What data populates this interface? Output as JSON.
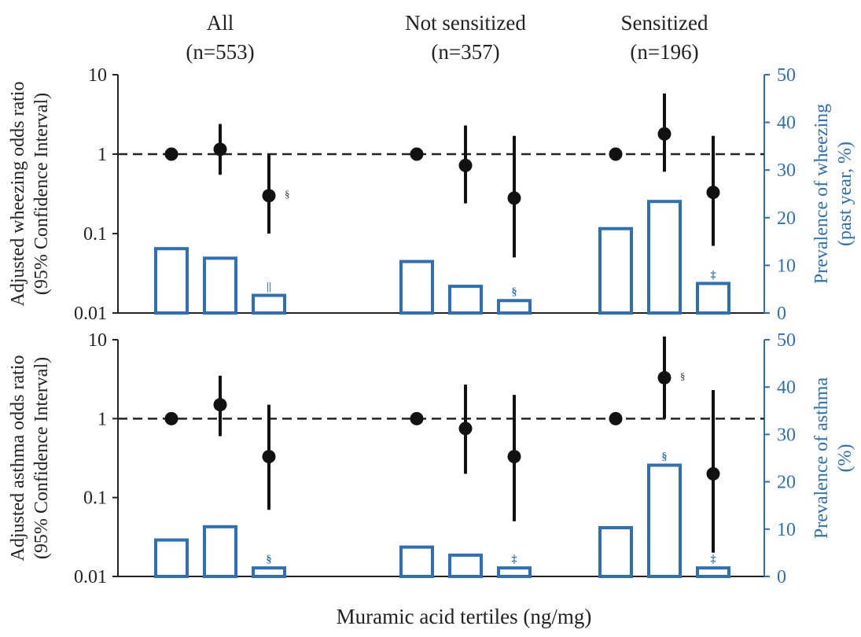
{
  "chart_data": {
    "type": "bar",
    "xlabel": "Muramic acid tertiles (ng/mg)",
    "groups": [
      {
        "name": "All",
        "n": "(n=553)"
      },
      {
        "name": "Not sensitized",
        "n": "(n=357)"
      },
      {
        "name": "Sensitized",
        "n": "(n=196)"
      }
    ],
    "left_ticks": [
      "10",
      "1",
      "0.1",
      "0.01"
    ],
    "right_ticks": [
      "50",
      "40",
      "30",
      "20",
      "10",
      "0"
    ],
    "left_scale": "log",
    "left_range": [
      0.01,
      10
    ],
    "right_range": [
      0,
      50
    ],
    "reference_line": 1,
    "bar_color": "#2e6fb5",
    "right_axis_color": "#2e6fb5",
    "point_color": "#111111",
    "panels": [
      {
        "name": "wheezing",
        "left_label": [
          "Adjusted wheezing odds ratio",
          "(95% Confidence Interval)"
        ],
        "right_label": [
          "Prevalence of wheezing",
          "(past year, %)"
        ],
        "groups": [
          {
            "odds": [
              {
                "or": 1,
                "ci": null,
                "mark": ""
              },
              {
                "or": 1.15,
                "ci": [
                  0.55,
                  2.4
                ],
                "mark": ""
              },
              {
                "or": 0.3,
                "ci": [
                  0.1,
                  1.0
                ],
                "mark": "§"
              }
            ],
            "prevalence": [
              {
                "value": 13.5,
                "mark": ""
              },
              {
                "value": 11.5,
                "mark": ""
              },
              {
                "value": 3.7,
                "mark": "||"
              }
            ]
          },
          {
            "odds": [
              {
                "or": 1,
                "ci": null,
                "mark": ""
              },
              {
                "or": 0.72,
                "ci": [
                  0.24,
                  2.3
                ],
                "mark": ""
              },
              {
                "or": 0.28,
                "ci": [
                  0.05,
                  1.7
                ],
                "mark": ""
              }
            ],
            "prevalence": [
              {
                "value": 10.8,
                "mark": ""
              },
              {
                "value": 5.6,
                "mark": ""
              },
              {
                "value": 2.6,
                "mark": "§"
              }
            ]
          },
          {
            "odds": [
              {
                "or": 1,
                "ci": null,
                "mark": ""
              },
              {
                "or": 1.8,
                "ci": [
                  0.6,
                  5.8
                ],
                "mark": ""
              },
              {
                "or": 0.33,
                "ci": [
                  0.07,
                  1.7
                ],
                "mark": ""
              }
            ],
            "prevalence": [
              {
                "value": 17.7,
                "mark": ""
              },
              {
                "value": 23.4,
                "mark": ""
              },
              {
                "value": 6.2,
                "mark": "‡"
              }
            ]
          }
        ]
      },
      {
        "name": "asthma",
        "left_label": [
          "Adjusted asthma odds ratio",
          "(95% Confidence Interval)"
        ],
        "right_label": [
          "Prevalence of asthma",
          "(%)"
        ],
        "groups": [
          {
            "odds": [
              {
                "or": 1,
                "ci": null,
                "mark": ""
              },
              {
                "or": 1.5,
                "ci": [
                  0.6,
                  3.5
                ],
                "mark": ""
              },
              {
                "or": 0.33,
                "ci": [
                  0.07,
                  1.5
                ],
                "mark": ""
              }
            ],
            "prevalence": [
              {
                "value": 7.7,
                "mark": ""
              },
              {
                "value": 10.5,
                "mark": ""
              },
              {
                "value": 1.8,
                "mark": "§"
              }
            ]
          },
          {
            "odds": [
              {
                "or": 1,
                "ci": null,
                "mark": ""
              },
              {
                "or": 0.75,
                "ci": [
                  0.2,
                  2.7
                ],
                "mark": ""
              },
              {
                "or": 0.33,
                "ci": [
                  0.05,
                  2.0
                ],
                "mark": ""
              }
            ],
            "prevalence": [
              {
                "value": 6.2,
                "mark": ""
              },
              {
                "value": 4.5,
                "mark": ""
              },
              {
                "value": 1.8,
                "mark": "‡"
              }
            ]
          },
          {
            "odds": [
              {
                "or": 1,
                "ci": null,
                "mark": ""
              },
              {
                "or": 3.3,
                "ci": [
                  1.0,
                  11
                ],
                "mark": "§"
              },
              {
                "or": 0.2,
                "ci": [
                  0.02,
                  2.3
                ],
                "mark": ""
              }
            ],
            "prevalence": [
              {
                "value": 10.3,
                "mark": ""
              },
              {
                "value": 23.5,
                "mark": "§"
              },
              {
                "value": 1.8,
                "mark": "‡"
              }
            ]
          }
        ]
      }
    ]
  }
}
